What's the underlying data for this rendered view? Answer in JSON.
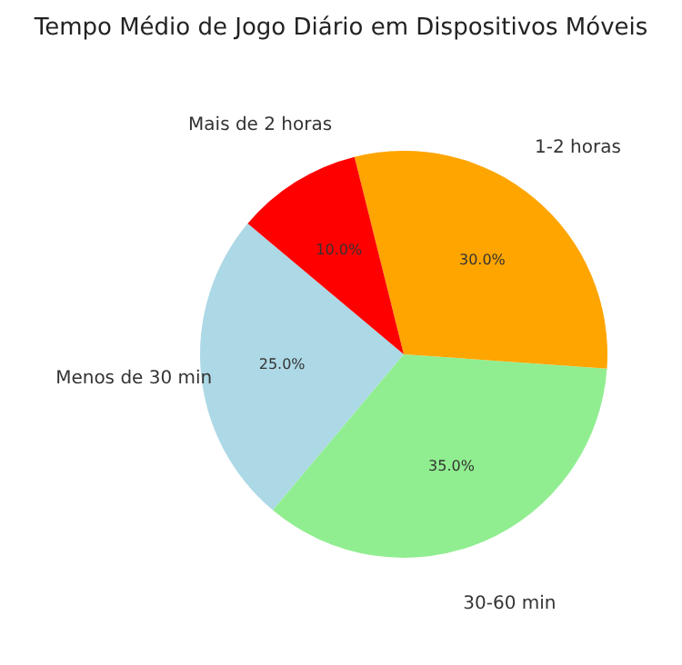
{
  "chart_data": {
    "type": "pie",
    "title": "Tempo Médio de Jogo Diário em Dispositivos Móveis",
    "categories": [
      "Menos de 30 min",
      "30-60 min",
      "1-2 horas",
      "Mais de 2 horas"
    ],
    "values": [
      25,
      35,
      30,
      10
    ],
    "colors": [
      "#add8e6",
      "#90ee90",
      "#ffa500",
      "#ff0000"
    ],
    "value_labels": [
      "25.0%",
      "35.0%",
      "30.0%",
      "10.0%"
    ]
  }
}
